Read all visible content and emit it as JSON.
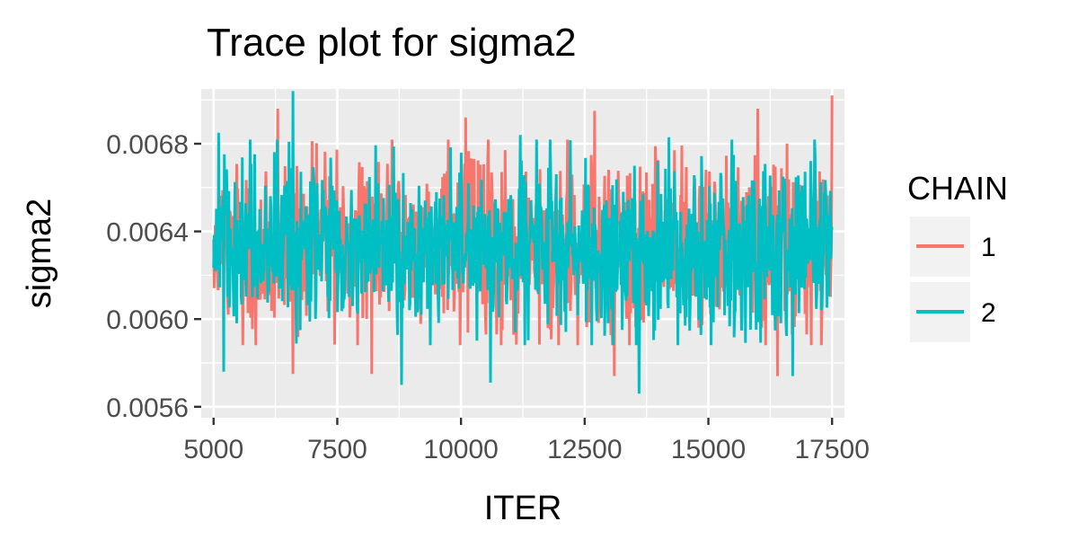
{
  "chart_data": {
    "type": "line",
    "title": "Trace plot for sigma2",
    "xlabel": "ITER",
    "ylabel": "sigma2",
    "xlim": [
      4750,
      17750
    ],
    "ylim": [
      0.00555,
      0.00705
    ],
    "x_ticks": [
      5000,
      7500,
      10000,
      12500,
      15000,
      17500
    ],
    "x_tick_labels": [
      "5000",
      "7500",
      "10000",
      "12500",
      "15000",
      "17500"
    ],
    "y_ticks": [
      0.0056,
      0.006,
      0.0064,
      0.0068
    ],
    "y_tick_labels": [
      "0.0056",
      "0.0060",
      "0.0064",
      "0.0068"
    ],
    "grid": true,
    "legend": {
      "title": "CHAIN",
      "position": "right",
      "entries": [
        "1",
        "2"
      ]
    },
    "series": [
      {
        "name": "1",
        "color": "#F8766D",
        "x_start": 5000,
        "x_end": 17500,
        "center": 0.00633,
        "typical_low": 0.00605,
        "typical_high": 0.00665,
        "peaks": [
          {
            "x": 6300,
            "y": 0.00696
          },
          {
            "x": 10100,
            "y": 0.00692
          },
          {
            "x": 12700,
            "y": 0.00695
          },
          {
            "x": 16000,
            "y": 0.00696
          },
          {
            "x": 17500,
            "y": 0.00702
          }
        ],
        "troughs": [
          {
            "x": 6600,
            "y": 0.00575
          },
          {
            "x": 8200,
            "y": 0.00575
          },
          {
            "x": 13100,
            "y": 0.00574
          },
          {
            "x": 16400,
            "y": 0.00574
          }
        ]
      },
      {
        "name": "2",
        "color": "#00BFC4",
        "x_start": 5000,
        "x_end": 17500,
        "center": 0.00633,
        "typical_low": 0.00605,
        "typical_high": 0.00665,
        "peaks": [
          {
            "x": 6600,
            "y": 0.00704
          },
          {
            "x": 5100,
            "y": 0.00685
          },
          {
            "x": 11200,
            "y": 0.00684
          },
          {
            "x": 14200,
            "y": 0.00683
          }
        ],
        "troughs": [
          {
            "x": 5200,
            "y": 0.00576
          },
          {
            "x": 8800,
            "y": 0.0057
          },
          {
            "x": 10600,
            "y": 0.00571
          },
          {
            "x": 13600,
            "y": 0.00566
          },
          {
            "x": 16700,
            "y": 0.00574
          }
        ]
      }
    ]
  }
}
